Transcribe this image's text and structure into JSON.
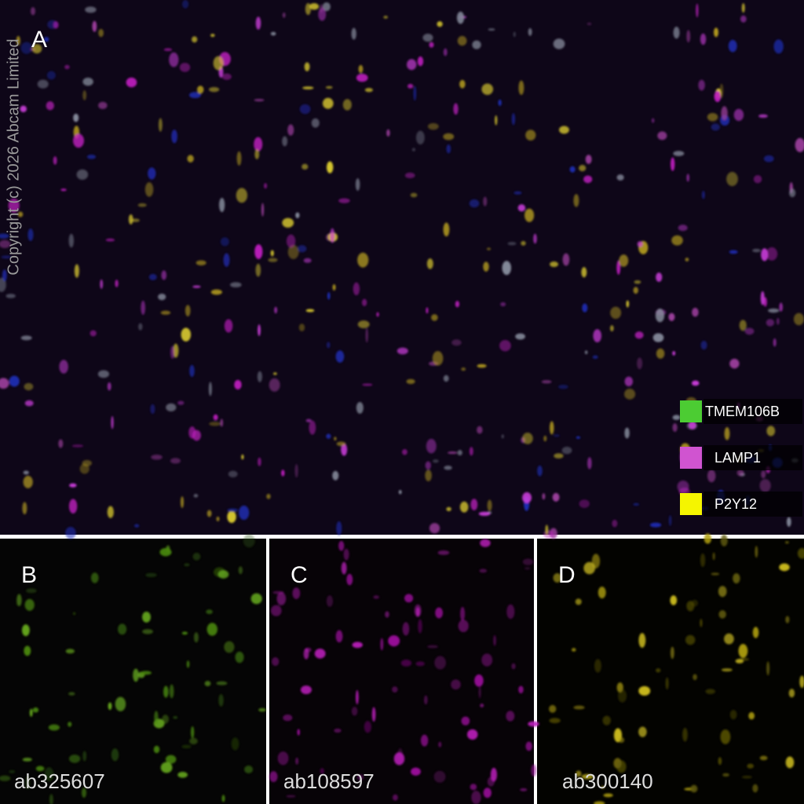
{
  "copyright": "Copyright (c) 2026 Abcam Limited",
  "main_panel": {
    "label": "A",
    "legend": [
      {
        "name": "TMEM106B",
        "color": "#4ccc33"
      },
      {
        "name": "LAMP1",
        "color": "#d054d0"
      },
      {
        "name": "P2Y12",
        "color": "#f5f500"
      }
    ]
  },
  "sub_panels": [
    {
      "label": "B",
      "antibody": "ab325607"
    },
    {
      "label": "C",
      "antibody": "ab108597"
    },
    {
      "label": "D",
      "antibody": "ab300140"
    }
  ]
}
